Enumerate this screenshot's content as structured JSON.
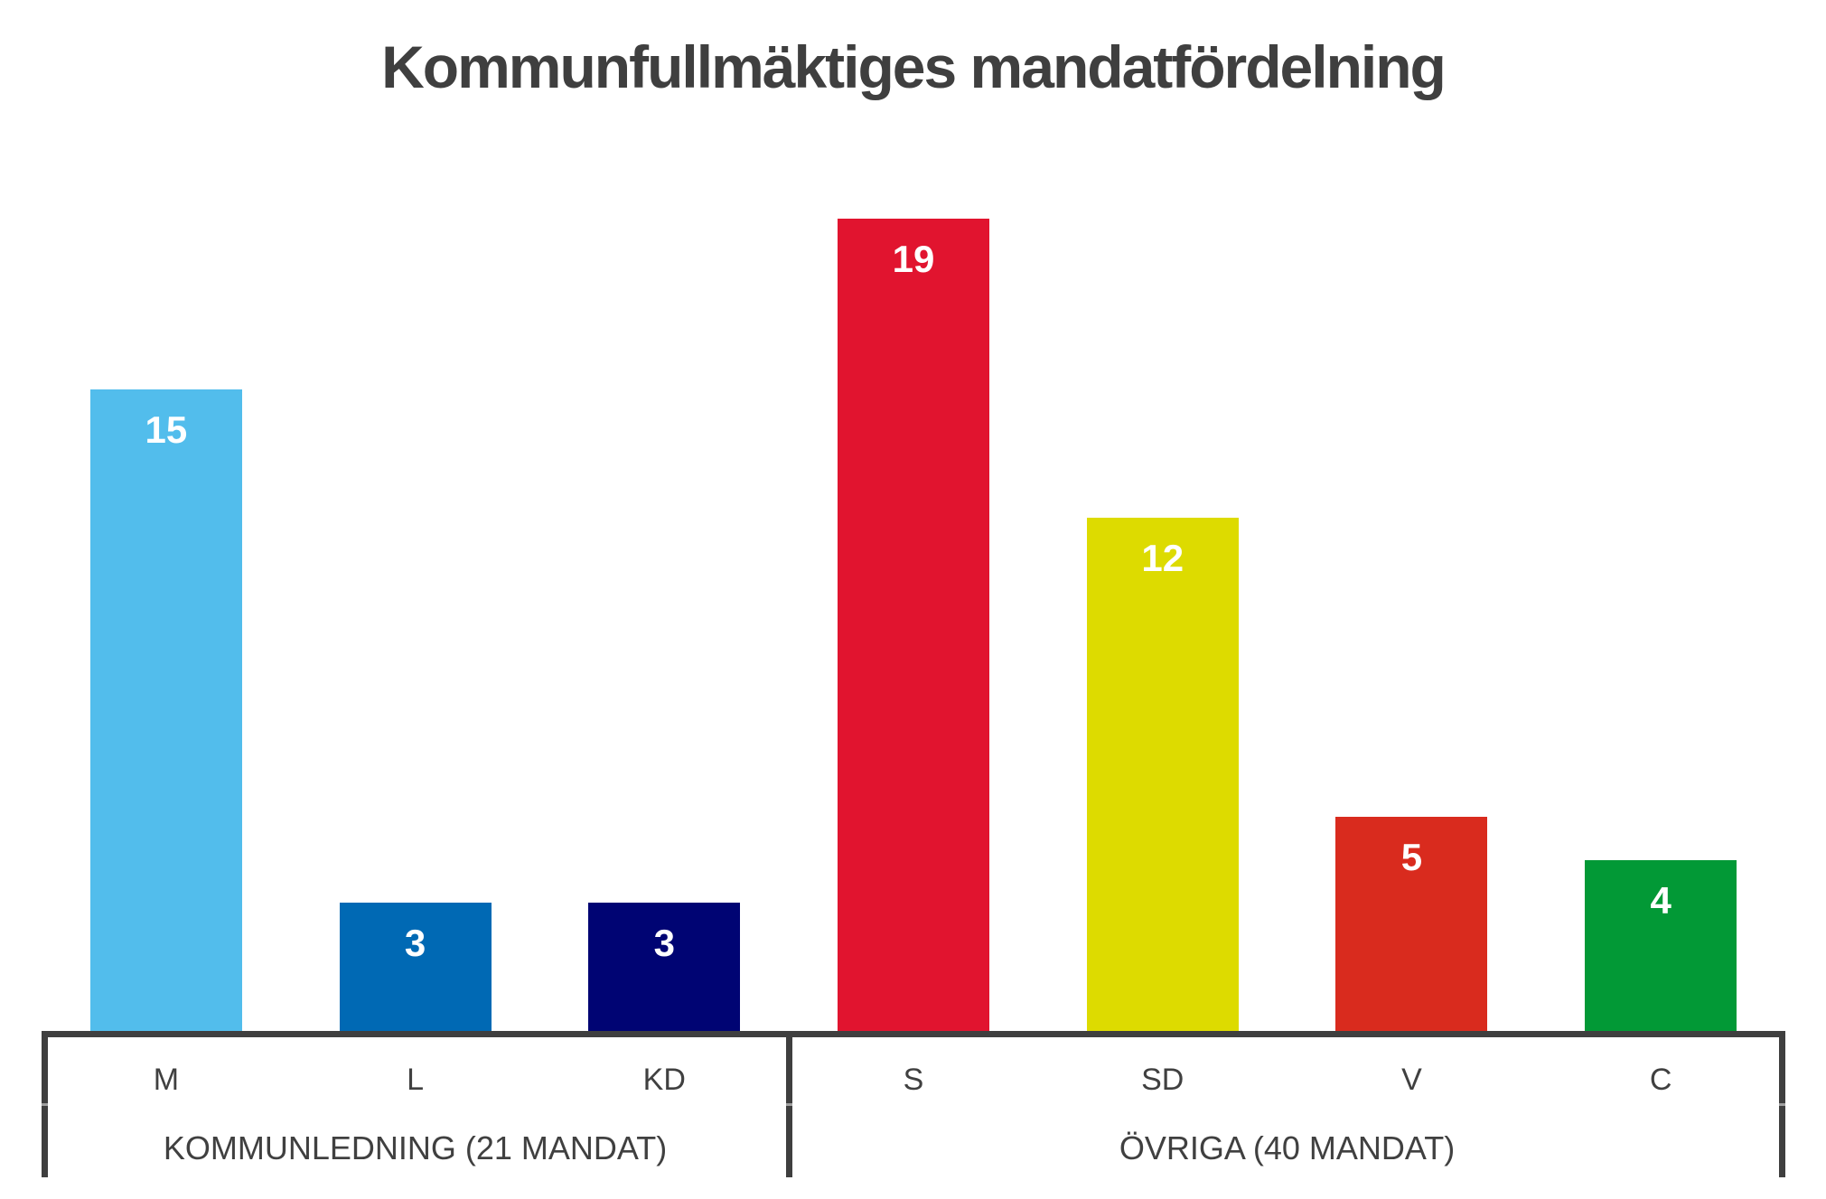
{
  "page": {
    "background": "#FFFFFF"
  },
  "chart_data": {
    "type": "bar",
    "title": "Kommunfullmäktiges mandatfördelning",
    "xlabel": "",
    "ylabel": "",
    "ylim": [
      0,
      20
    ],
    "grid": false,
    "legend": null,
    "value_label_position": "inside-top",
    "categories": [
      "M",
      "L",
      "KD",
      "S",
      "SD",
      "V",
      "C"
    ],
    "values": [
      15,
      3,
      3,
      19,
      12,
      5,
      4
    ],
    "groups": [
      {
        "label": "KOMMUNLEDNING (21 MANDAT)",
        "total_seats": 21,
        "bars": [
          {
            "label": "M",
            "value": 15,
            "color": "#52BDEC"
          },
          {
            "label": "L",
            "value": 3,
            "color": "#0069B4"
          },
          {
            "label": "KD",
            "value": 3,
            "color": "#000473"
          }
        ]
      },
      {
        "label": "ÖVRIGA (40 MANDAT)",
        "total_seats": 40,
        "bars": [
          {
            "label": "S",
            "value": 19,
            "color": "#E1142F"
          },
          {
            "label": "SD",
            "value": 12,
            "color": "#DDDB00"
          },
          {
            "label": "V",
            "value": 5,
            "color": "#D92B1E"
          },
          {
            "label": "C",
            "value": 4,
            "color": "#029936"
          }
        ]
      }
    ],
    "colors": {
      "title": "#3F3F3F",
      "axis": "#3F3F3F",
      "axis_notch": "#A0A0A0",
      "text": "#404040",
      "value_label": "#FFFFFF",
      "background": "#FFFFFF"
    }
  }
}
